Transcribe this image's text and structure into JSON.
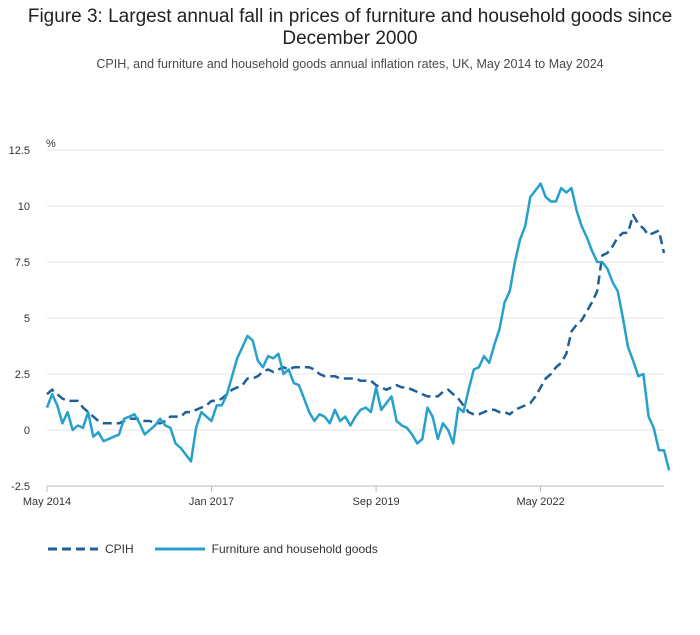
{
  "chart_data": {
    "type": "line",
    "title": "Figure 3: Largest annual fall in prices of furniture and household goods since December 2000",
    "subtitle": "CPIH, and furniture and household goods annual inflation rates, UK, May 2014 to May 2024",
    "ylabel": "%",
    "ylim": [
      -2.5,
      12.5
    ],
    "yticks": [
      "12.5",
      "10",
      "7.5",
      "5",
      "2.5",
      "0",
      "-2.5"
    ],
    "xticks": [
      {
        "label": "May 2014",
        "index": 0
      },
      {
        "label": "Jan 2017",
        "index": 32
      },
      {
        "label": "Sep 2019",
        "index": 64
      },
      {
        "label": "May 2022",
        "index": 96
      }
    ],
    "x_count": 121,
    "series": [
      {
        "name": "CPIH",
        "color": "#206095",
        "style": "dashed",
        "values": [
          1.6,
          1.8,
          1.6,
          1.4,
          1.3,
          1.3,
          1.3,
          1.0,
          0.8,
          0.6,
          0.4,
          0.3,
          0.3,
          0.3,
          0.3,
          0.4,
          0.5,
          0.5,
          0.5,
          0.4,
          0.4,
          0.3,
          0.3,
          0.4,
          0.6,
          0.6,
          0.6,
          0.8,
          0.8,
          0.9,
          1.0,
          1.1,
          1.3,
          1.3,
          1.4,
          1.6,
          1.8,
          1.9,
          2.0,
          2.3,
          2.3,
          2.4,
          2.6,
          2.7,
          2.6,
          2.7,
          2.8,
          2.7,
          2.8,
          2.8,
          2.8,
          2.8,
          2.7,
          2.5,
          2.4,
          2.4,
          2.4,
          2.3,
          2.3,
          2.3,
          2.3,
          2.2,
          2.2,
          2.2,
          2.0,
          1.9,
          1.8,
          1.9,
          2.0,
          1.9,
          1.9,
          1.8,
          1.7,
          1.6,
          1.5,
          1.5,
          1.5,
          1.7,
          1.8,
          1.6,
          1.4,
          1.1,
          0.8,
          0.7,
          0.7,
          0.8,
          0.9,
          0.9,
          0.8,
          0.8,
          0.7,
          0.9,
          1.0,
          1.1,
          1.2,
          1.5,
          1.9,
          2.3,
          2.5,
          2.8,
          3.0,
          3.4,
          4.4,
          4.7,
          4.9,
          5.3,
          5.7,
          6.2,
          7.8,
          7.9,
          8.2,
          8.6,
          8.8,
          8.8,
          9.6,
          9.2,
          9.0,
          8.7,
          8.8,
          8.9,
          7.9
        ]
      },
      {
        "name": "Furniture and household goods",
        "color": "#27a0cc",
        "style": "solid",
        "values": [
          1.0,
          1.6,
          1.1,
          0.3,
          0.8,
          0.0,
          0.2,
          0.1,
          0.8,
          -0.3,
          -0.1,
          -0.5,
          -0.4,
          -0.3,
          -0.2,
          0.5,
          0.6,
          0.7,
          0.3,
          -0.2,
          0.0,
          0.2,
          0.5,
          0.2,
          0.1,
          -0.6,
          -0.8,
          -1.1,
          -1.4,
          0.1,
          0.8,
          0.6,
          0.4,
          1.1,
          1.1,
          1.6,
          2.4,
          3.2,
          3.7,
          4.2,
          4.0,
          3.1,
          2.8,
          3.3,
          3.2,
          3.4,
          2.5,
          2.7,
          2.1,
          2.0,
          1.4,
          0.8,
          0.4,
          0.7,
          0.6,
          0.3,
          0.9,
          0.4,
          0.6,
          0.2,
          0.6,
          0.9,
          1.0,
          0.8,
          1.9,
          0.9,
          1.2,
          1.5,
          0.4,
          0.2,
          0.1,
          -0.2,
          -0.6,
          -0.4,
          1.0,
          0.6,
          -0.4,
          0.3,
          0.0,
          -0.6,
          1.0,
          0.8,
          1.8,
          2.7,
          2.8,
          3.3,
          3.0,
          3.8,
          4.5,
          5.7,
          6.2,
          7.5,
          8.5,
          9.1,
          10.4,
          10.7,
          11.0,
          10.4,
          10.2,
          10.2,
          10.8,
          10.6,
          10.8,
          9.8,
          9.1,
          8.6,
          8.0,
          7.5,
          7.5,
          7.2,
          6.6,
          6.2,
          5.0,
          3.7,
          3.1,
          2.4,
          2.5,
          0.6,
          0.1,
          -0.9,
          -0.9,
          -1.8
        ]
      }
    ],
    "legend_position": "bottom-left",
    "grid": true
  }
}
